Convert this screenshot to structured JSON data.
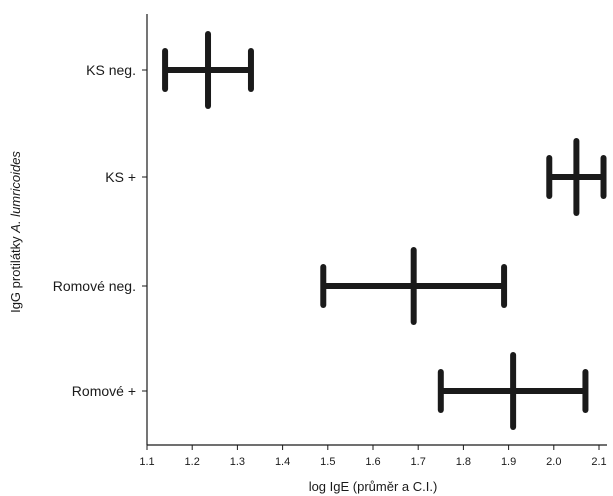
{
  "chart_data": {
    "type": "errorbar",
    "title": "",
    "xlabel": "log IgE (průměr a C.I.)",
    "ylabel_prefix": "IgG protilátky ",
    "ylabel_italic": "A. lumricoides",
    "xlim": [
      1.1,
      2.1
    ],
    "x_ticks": [
      "1.1",
      "1.2",
      "1.3",
      "1.4",
      "1.5",
      "1.6",
      "1.7",
      "1.8",
      "1.9",
      "2.0",
      "2.1"
    ],
    "grid": false,
    "categories": [
      "KS neg.",
      "KS +",
      "Romové neg.",
      "Romové +"
    ],
    "series": [
      {
        "category": "KS neg.",
        "mean": 1.235,
        "ci_low": 1.14,
        "ci_high": 1.33
      },
      {
        "category": "KS +",
        "mean": 2.05,
        "ci_low": 1.99,
        "ci_high": 2.11
      },
      {
        "category": "Romové neg.",
        "mean": 1.69,
        "ci_low": 1.49,
        "ci_high": 1.89
      },
      {
        "category": "Romové +",
        "mean": 1.91,
        "ci_low": 1.75,
        "ci_high": 2.07
      }
    ],
    "bar_color": "#1a1a1a"
  }
}
